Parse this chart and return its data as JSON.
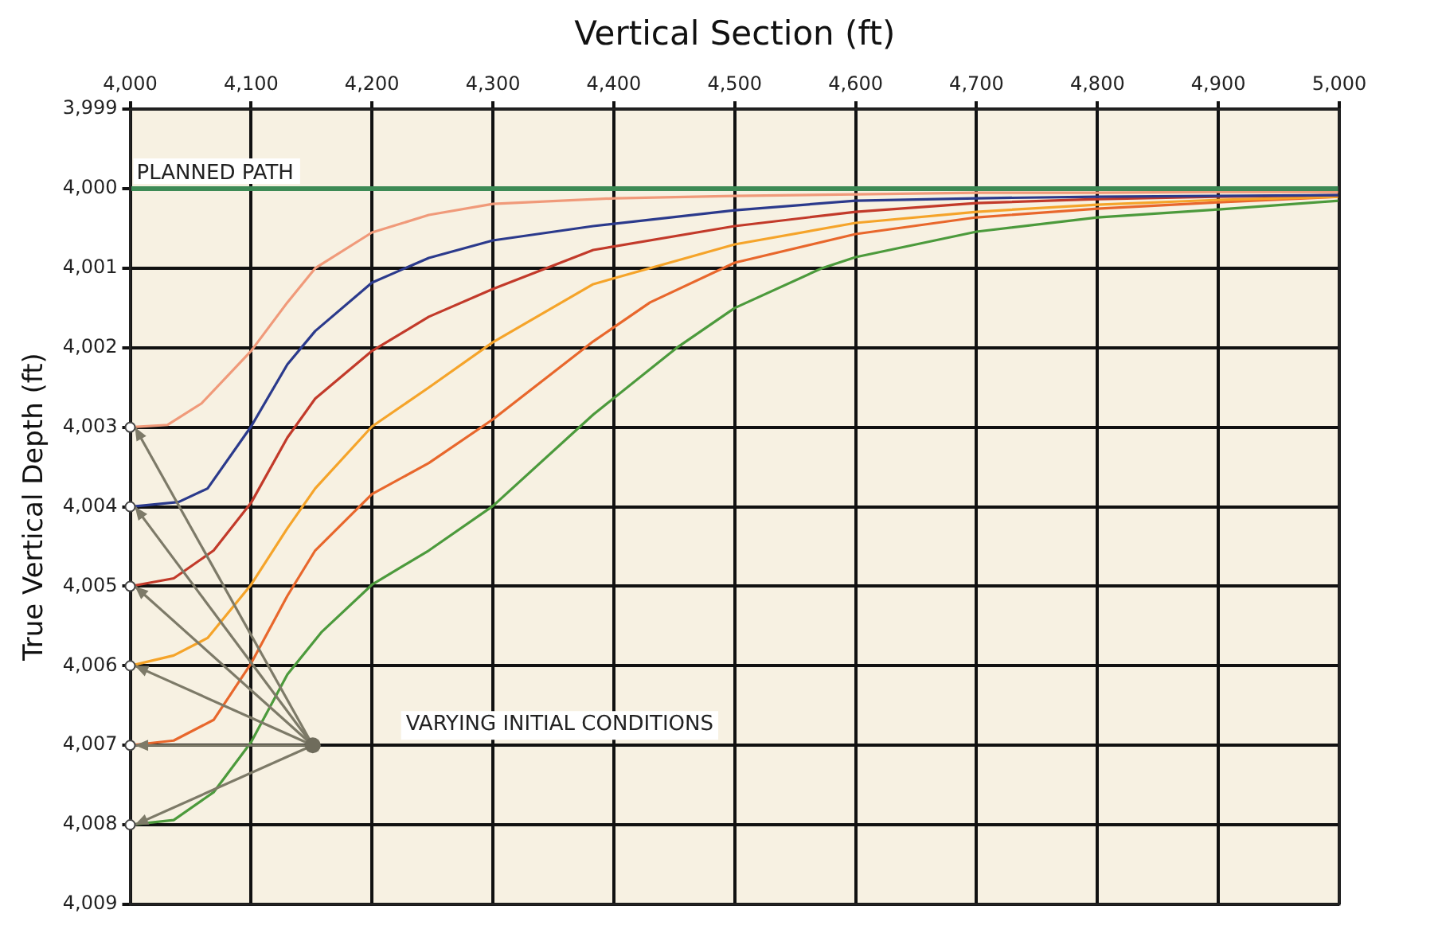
{
  "chart_data": {
    "type": "line",
    "xlabel": "Vertical Section (ft)",
    "ylabel": "True Vertical Depth (ft)",
    "xlim": [
      4000,
      5000
    ],
    "xticks": [
      {
        "value": 4000,
        "label": "4,000"
      },
      {
        "value": 4100,
        "label": "4,100"
      },
      {
        "value": 4200,
        "label": "4,200"
      },
      {
        "value": 4300,
        "label": "4,300"
      },
      {
        "value": 4400,
        "label": "4,400"
      },
      {
        "value": 4500,
        "label": "4,500"
      },
      {
        "value": 4600,
        "label": "4,600"
      },
      {
        "value": 4700,
        "label": "4,700"
      },
      {
        "value": 4800,
        "label": "4,800"
      },
      {
        "value": 4900,
        "label": "4,900"
      },
      {
        "value": 5000,
        "label": "5,000"
      }
    ],
    "ylim": [
      4009,
      3999
    ],
    "yticks": [
      {
        "value": 3999,
        "label": "3,999"
      },
      {
        "value": 4000,
        "label": "4,000"
      },
      {
        "value": 4001,
        "label": "4,001"
      },
      {
        "value": 4002,
        "label": "4,002"
      },
      {
        "value": 4003,
        "label": "4,003"
      },
      {
        "value": 4004,
        "label": "4,004"
      },
      {
        "value": 4005,
        "label": "4,005"
      },
      {
        "value": 4006,
        "label": "4,006"
      },
      {
        "value": 4007,
        "label": "4,007"
      },
      {
        "value": 4008,
        "label": "4,008"
      },
      {
        "value": 4009,
        "label": "4,009"
      }
    ],
    "grid": true,
    "marker": "none",
    "line_style": "solid",
    "series": [
      {
        "color": "#f09a7a",
        "x": [
          4000,
          4031,
          4059,
          4100,
          4130,
          4153,
          4200,
          4247,
          4300,
          4401,
          4500,
          4600,
          4700,
          4800,
          4900,
          5000
        ],
        "values": [
          4003,
          4002.97,
          4002.7,
          4002.04,
          4001.43,
          4001.0,
          4000.55,
          4000.33,
          4000.19,
          4000.12,
          4000.09,
          4000.07,
          4000.05,
          4000.05,
          4000.04,
          4000.04
        ]
      },
      {
        "color": "#2b3a8c",
        "x": [
          4000,
          4040,
          4064,
          4100,
          4130,
          4153,
          4200,
          4247,
          4300,
          4383,
          4500,
          4600,
          4700,
          4800,
          4900,
          5000
        ],
        "values": [
          4004,
          4003.94,
          4003.77,
          4002.99,
          4002.21,
          4001.79,
          4001.18,
          4000.87,
          4000.65,
          4000.47,
          4000.27,
          4000.15,
          4000.12,
          4000.1,
          4000.09,
          4000.08
        ]
      },
      {
        "color": "#c23a2a",
        "x": [
          4000,
          4036,
          4069,
          4100,
          4130,
          4153,
          4200,
          4247,
          4300,
          4383,
          4500,
          4600,
          4700,
          4800,
          4900,
          5000
        ],
        "values": [
          4005,
          4004.9,
          4004.55,
          4003.95,
          4003.13,
          4002.64,
          4002.04,
          4001.61,
          4001.26,
          4000.77,
          4000.47,
          4000.29,
          4000.18,
          4000.13,
          4000.1,
          4000.08
        ]
      },
      {
        "color": "#f5a42a",
        "x": [
          4000,
          4036,
          4064,
          4100,
          4130,
          4153,
          4200,
          4247,
          4300,
          4383,
          4500,
          4600,
          4700,
          4800,
          4900,
          5000
        ],
        "values": [
          4006,
          4005.87,
          4005.65,
          4004.98,
          4004.27,
          4003.77,
          4002.99,
          4002.5,
          4001.93,
          4001.2,
          4000.7,
          4000.43,
          4000.29,
          4000.2,
          4000.14,
          4000.1
        ]
      },
      {
        "color": "#e8672c",
        "x": [
          4000,
          4036,
          4069,
          4100,
          4130,
          4153,
          4200,
          4247,
          4300,
          4383,
          4430,
          4500,
          4600,
          4700,
          4800,
          4900,
          5000
        ],
        "values": [
          4007,
          4006.94,
          4006.68,
          4005.97,
          4005.12,
          4004.55,
          4003.84,
          4003.45,
          4002.9,
          4001.92,
          4001.43,
          4000.93,
          4000.57,
          4000.36,
          4000.25,
          4000.17,
          4000.1
        ]
      },
      {
        "color": "#4c9a3c",
        "x": [
          4000,
          4036,
          4069,
          4100,
          4130,
          4158,
          4200,
          4247,
          4300,
          4383,
          4453,
          4500,
          4572,
          4600,
          4700,
          4800,
          4900,
          5000
        ],
        "values": [
          4008,
          4007.94,
          4007.59,
          4006.96,
          4006.11,
          4005.58,
          4004.98,
          4004.55,
          4003.99,
          4002.84,
          4001.99,
          4001.5,
          4001.0,
          4000.86,
          4000.54,
          4000.36,
          4000.26,
          4000.15
        ]
      }
    ],
    "ref_lines": [
      {
        "axis": "y",
        "value": 4000,
        "label": "PLANNED PATH",
        "color": "#3d8a55"
      }
    ],
    "annotations": [
      "VARYING INITIAL CONDITIONS"
    ]
  }
}
